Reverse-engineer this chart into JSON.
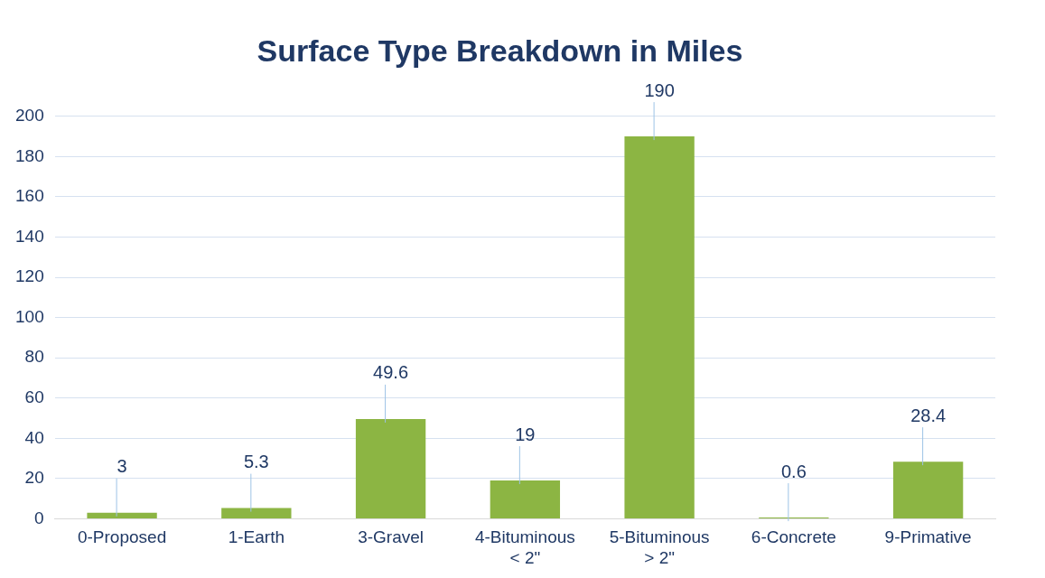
{
  "chart_data": {
    "type": "bar",
    "title": "Surface Type Breakdown in Miles",
    "categories": [
      "0-Proposed",
      "1-Earth",
      "3-Gravel",
      "4-Bituminous < 2\"",
      "5-Bituminous > 2\"",
      "6-Concrete",
      "9-Primative"
    ],
    "values": [
      3,
      5.3,
      49.6,
      19,
      190,
      0.6,
      28.4
    ],
    "color": "#8cb543",
    "ylim": [
      0,
      200
    ],
    "yticks": [
      0,
      20,
      40,
      60,
      80,
      100,
      120,
      140,
      160,
      180,
      200
    ],
    "grid": "y",
    "data_labels": true
  }
}
